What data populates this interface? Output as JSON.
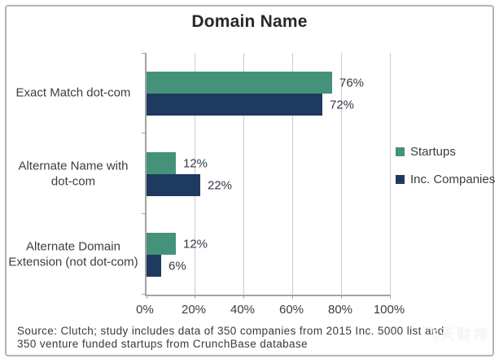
{
  "title": "Domain Name",
  "chart_data": {
    "type": "bar",
    "orientation": "horizontal",
    "title": "Domain Name",
    "categories": [
      "Exact Match dot-com",
      "Alternate Name with\ndot-com",
      "Alternate Domain\nExtension (not dot-com)"
    ],
    "series": [
      {
        "name": "Startups",
        "color": "#439279",
        "values": [
          76,
          12,
          12
        ]
      },
      {
        "name": "Inc. Companies",
        "color": "#1e3a5e",
        "values": [
          72,
          22,
          6
        ]
      }
    ],
    "value_labels": [
      [
        "76%",
        "12%",
        "12%"
      ],
      [
        "72%",
        "22%",
        "6%"
      ]
    ],
    "x_ticks": [
      "0%",
      "20%",
      "40%",
      "60%",
      "80%",
      "100%"
    ],
    "xlim": [
      0,
      100
    ],
    "grid": true,
    "legend_position": "right"
  },
  "colors": {
    "startups": "#439279",
    "inc_companies": "#1e3a5e",
    "gridline": "#cccccc",
    "axis": "#a3a3a3",
    "frame_border": "#b5b5b5"
  },
  "source": {
    "line1": "Source: Clutch; study includes data of 350 companies from 2015 Inc. 5000 list and",
    "line2": "350 venture funded startups from CrunchBase database"
  },
  "watermark": {
    "text": "飞天财神"
  }
}
